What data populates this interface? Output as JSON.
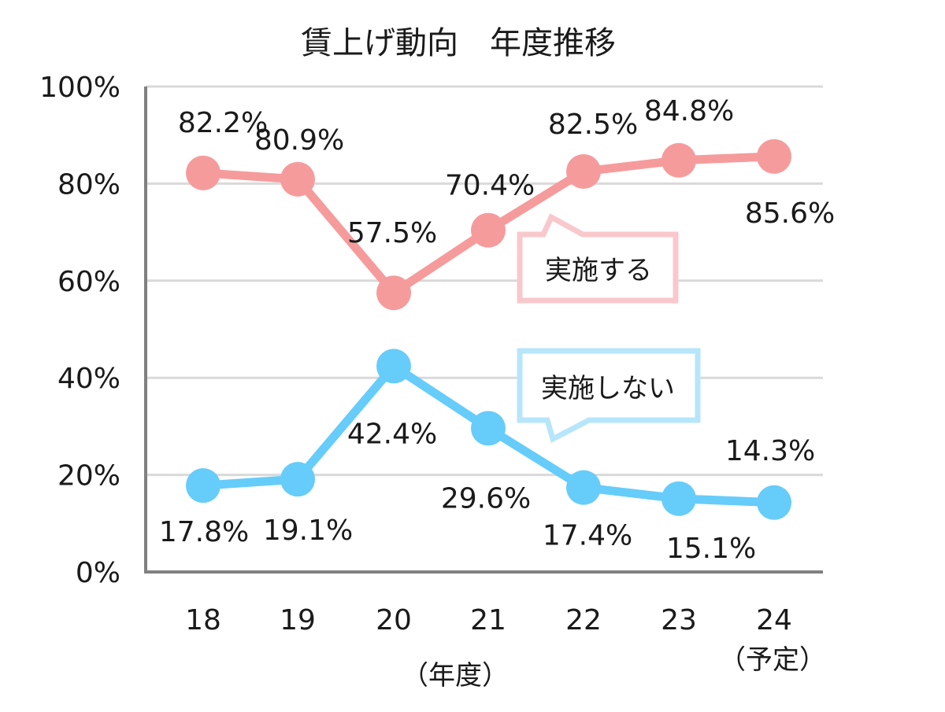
{
  "chart_data": {
    "type": "line",
    "title": "賃上げ動向　年度推移",
    "x_unit_label": "（年度）",
    "categories": [
      "18",
      "19",
      "20",
      "21",
      "22",
      "23",
      "24"
    ],
    "category_sublabels": [
      "",
      "",
      "",
      "",
      "",
      "",
      "（予定）"
    ],
    "y_ticks": [
      "0%",
      "20%",
      "40%",
      "60%",
      "80%",
      "100%"
    ],
    "ylim": [
      0,
      100
    ],
    "grid": true,
    "series": [
      {
        "name": "実施する",
        "values": [
          82.2,
          80.9,
          57.5,
          70.4,
          82.5,
          84.8,
          85.6
        ],
        "labels": [
          "82.2%",
          "80.9%",
          "57.5%",
          "70.4%",
          "82.5%",
          "84.8%",
          "85.6%"
        ],
        "color": "#F69B9C",
        "callout_border": "#F9C8CC"
      },
      {
        "name": "実施しない",
        "values": [
          17.8,
          19.1,
          42.4,
          29.6,
          17.4,
          15.1,
          14.3
        ],
        "labels": [
          "17.8%",
          "19.1%",
          "42.4%",
          "29.6%",
          "17.4%",
          "15.1%",
          "14.3%"
        ],
        "color": "#66CCFA",
        "callout_border": "#B7E6FB"
      }
    ]
  }
}
